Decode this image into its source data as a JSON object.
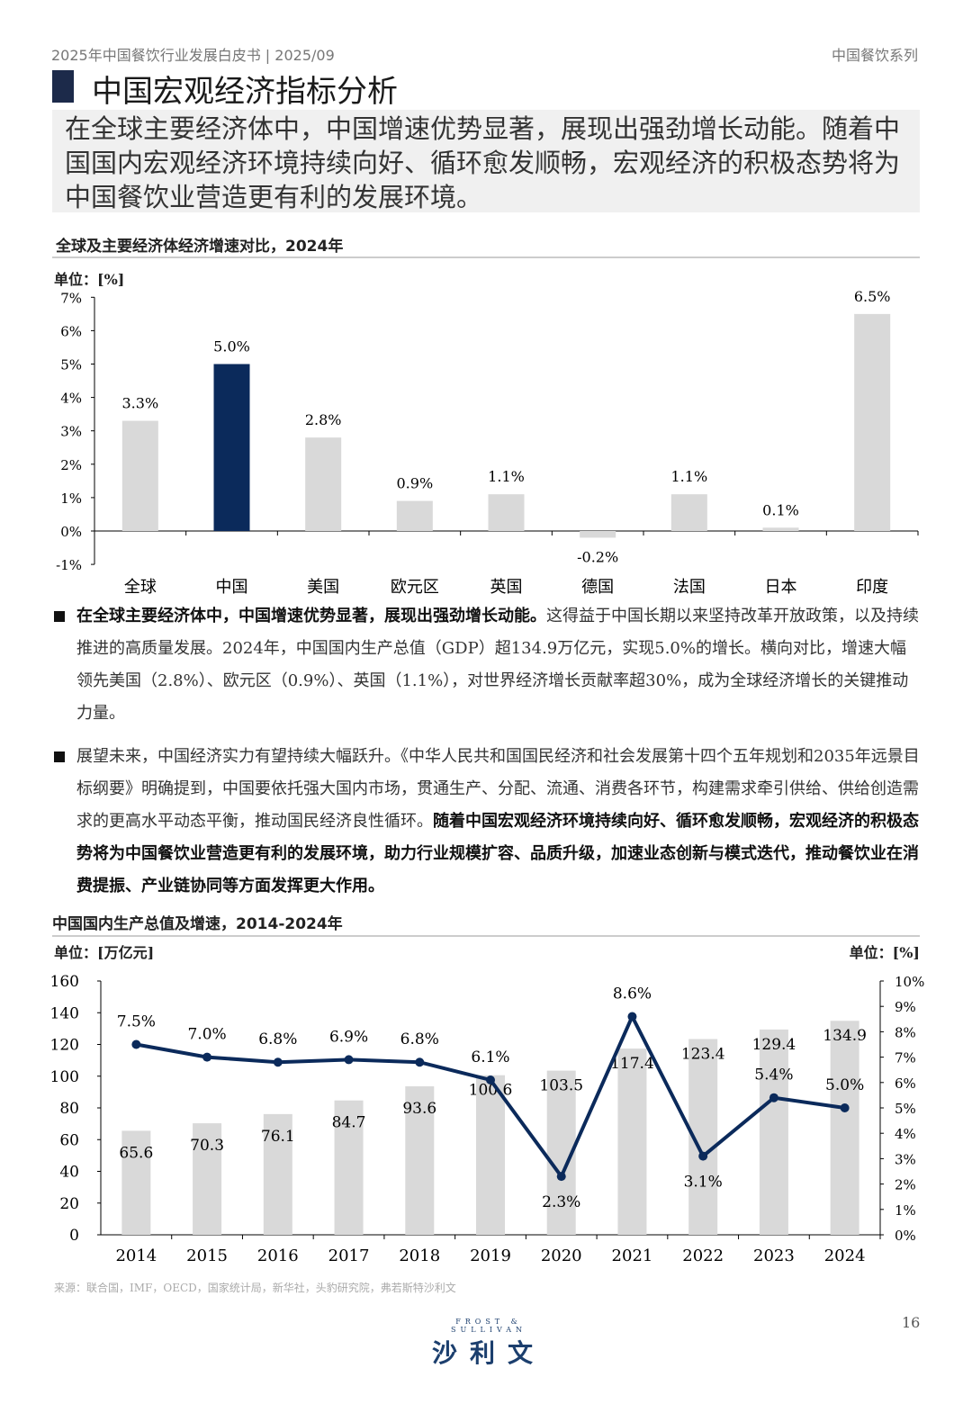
{
  "header": {
    "left": "2025年中国餐饮行业发展白皮书 | 2025/09",
    "right": "中国餐饮系列"
  },
  "title": "中国宏观经济指标分析",
  "summary": "在全球主要经济体中，中国增速优势显著，展现出强劲增长动能。随着中国国内宏观经济环境持续向好、循环愈发顺畅，宏观经济的积极态势将为中国餐饮业营造更有利的发展环境。",
  "paragraphs": [
    {
      "bold": "在全球主要经济体中，中国增速优势显著，展现出强劲增长动能。",
      "normal": "这得益于中国长期以来坚持改革开放政策，以及持续推进的高质量发展。2024年，中国国内生产总值（GDP）超134.9万亿元，实现5.0%的增长。横向对比，增速大幅领先美国（2.8%）、欧元区（0.9%）、英国（1.1%），对世界经济增长贡献率超30%，成为全球经济增长的关键推动力量。"
    },
    {
      "normal": "展望未来，中国经济实力有望持续大幅跃升。《中华人民共和国国民经济和社会发展第十四个五年规划和2035年远景目标纲要》明确提到，中国要依托强大国内市场，贯通生产、分配、流通、消费各环节，构建需求牵引供给、供给创造需求的更高水平动态平衡，推动国民经济良性循环。",
      "bold": "随着中国宏观经济环境持续向好、循环愈发顺畅，宏观经济的积极态势将为中国餐饮业营造更有利的发展环境，助力行业规模扩容、品质升级，加速业态创新与模式迭代，推动餐饮业在消费提振、产业链协同等方面发挥更大作用。"
    }
  ],
  "source": "来源：联合国，IMF，OECD，国家统计局，新华社，头豹研究院，弗若斯特沙利文",
  "logo": {
    "en": "FROST & SULLIVAN",
    "cn": "沙利文"
  },
  "page_number": "16",
  "colors": {
    "highlight": "#0b2a5b",
    "bar": "#d9d9d9"
  },
  "chart_data": [
    {
      "type": "bar",
      "title": "全球及主要经济体经济增速对比，2024年",
      "unit_label": "单位：[%]",
      "categories": [
        "全球",
        "中国",
        "美国",
        "欧元区",
        "英国",
        "德国",
        "法国",
        "日本",
        "印度"
      ],
      "values": [
        3.3,
        5.0,
        2.8,
        0.9,
        1.1,
        -0.2,
        1.1,
        0.1,
        6.5
      ],
      "data_labels": [
        "3.3%",
        "5.0%",
        "2.8%",
        "0.9%",
        "1.1%",
        "-0.2%",
        "1.1%",
        "0.1%",
        "6.5%"
      ],
      "highlight": "中国",
      "ylim": [
        -1,
        7
      ],
      "yticks": [
        "-1%",
        "0%",
        "1%",
        "2%",
        "3%",
        "4%",
        "5%",
        "6%",
        "7%"
      ],
      "grid": false
    },
    {
      "type": "bar+line",
      "title": "中国国内生产总值及增速，2014-2024年",
      "left_unit_label": "单位：[万亿元]",
      "right_unit_label": "单位：[%]",
      "categories": [
        "2014",
        "2015",
        "2016",
        "2017",
        "2018",
        "2019",
        "2020",
        "2021",
        "2022",
        "2023",
        "2024"
      ],
      "series": [
        {
          "type": "bar",
          "axis": "left",
          "values": [
            65.6,
            70.3,
            76.1,
            84.7,
            93.6,
            100.6,
            103.5,
            117.4,
            123.4,
            129.4,
            134.9
          ],
          "labels": [
            "65.6",
            "70.3",
            "76.1",
            "84.7",
            "93.6",
            "100.6",
            "103.5",
            "117.4",
            "123.4",
            "129.4",
            "134.9"
          ]
        },
        {
          "type": "line",
          "axis": "right",
          "values": [
            7.5,
            7.0,
            6.8,
            6.9,
            6.8,
            6.1,
            2.3,
            8.6,
            3.1,
            5.4,
            5.0
          ],
          "labels": [
            "7.5%",
            "7.0%",
            "6.8%",
            "6.9%",
            "6.8%",
            "6.1%",
            "2.3%",
            "8.6%",
            "3.1%",
            "5.4%",
            "5.0%"
          ]
        }
      ],
      "ylim_left": [
        0,
        160
      ],
      "yticks_left": [
        "0",
        "20",
        "40",
        "60",
        "80",
        "100",
        "120",
        "140",
        "160"
      ],
      "ylim_right": [
        0,
        10
      ],
      "yticks_right": [
        "0%",
        "1%",
        "2%",
        "3%",
        "4%",
        "5%",
        "6%",
        "7%",
        "8%",
        "9%",
        "10%"
      ],
      "grid": false
    }
  ]
}
